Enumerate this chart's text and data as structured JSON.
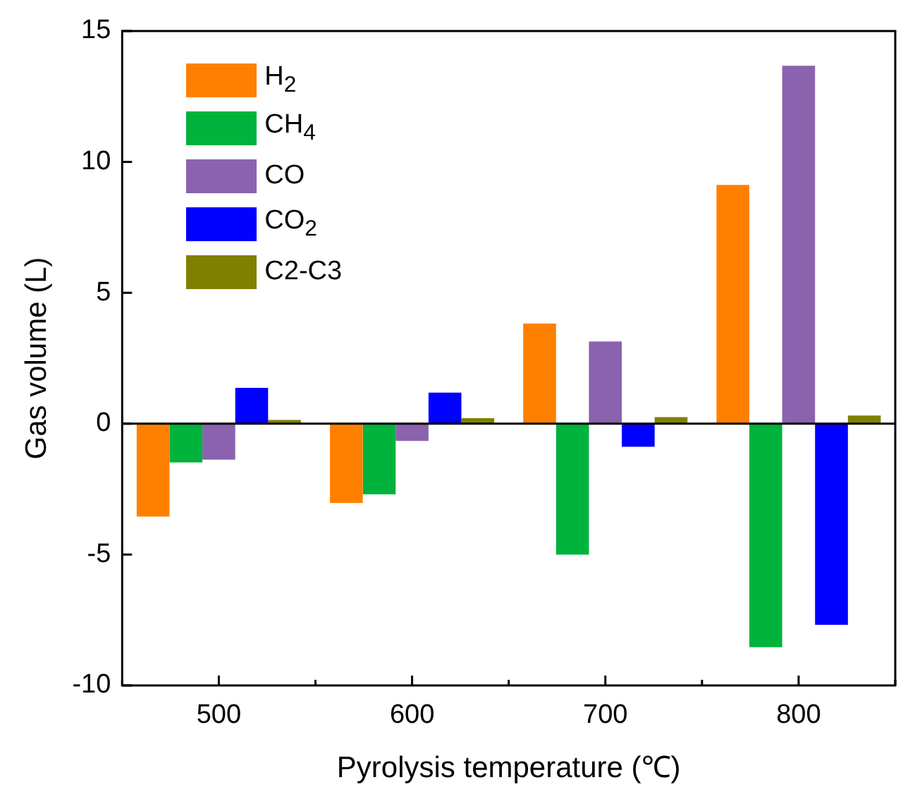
{
  "chart_data": {
    "type": "bar",
    "xlabel": "Pyrolysis temperature (℃)",
    "ylabel": "Gas volume (L)",
    "categories": [
      "500",
      "600",
      "700",
      "800"
    ],
    "series": [
      {
        "name": "H$_{2}$",
        "color": "#ff8000",
        "values": [
          -3.55,
          -3.03,
          3.83,
          9.12
        ]
      },
      {
        "name": "CH$_{4}$",
        "color": "#00b33c",
        "values": [
          -1.48,
          -2.7,
          -5.0,
          -8.54
        ]
      },
      {
        "name": "CO",
        "color": "#8b62ae",
        "values": [
          -1.37,
          -0.66,
          3.14,
          13.67
        ]
      },
      {
        "name": "CO$_{2}$",
        "color": "#0000ff",
        "values": [
          1.37,
          1.19,
          -0.88,
          -7.68
        ]
      },
      {
        "name": "C2-C3",
        "color": "#808000",
        "values": [
          0.14,
          0.21,
          0.25,
          0.31
        ]
      }
    ],
    "ylim": [
      -10,
      15
    ],
    "yticks": [
      -10,
      -5,
      0,
      5,
      10,
      15
    ],
    "grid": false,
    "legend": "top left",
    "ref_lines": [
      {
        "axis": "y",
        "value": 0,
        "color": "#000000"
      }
    ]
  }
}
